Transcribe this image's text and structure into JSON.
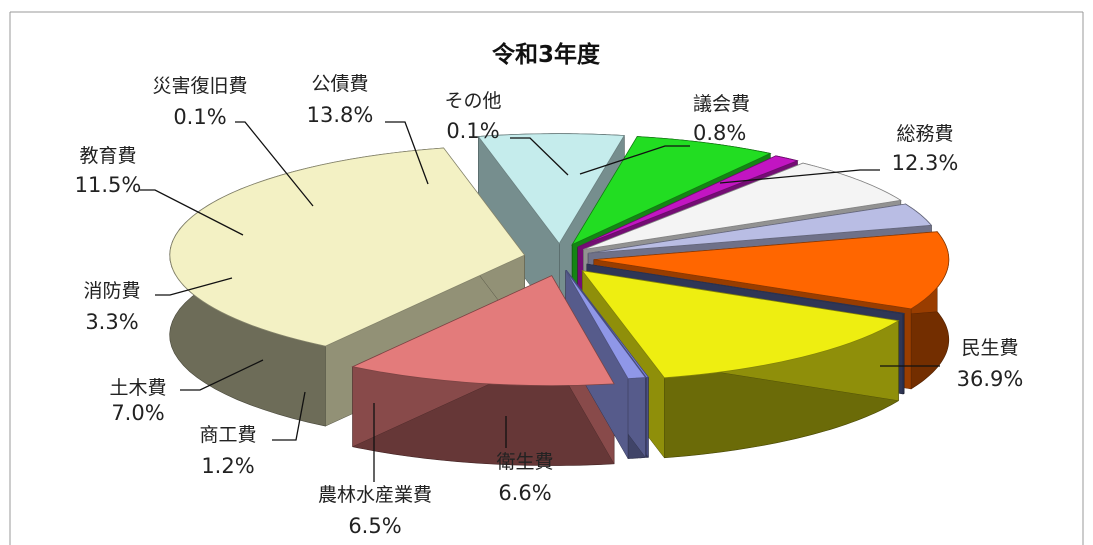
{
  "chart_data": {
    "type": "pie",
    "title": "令和3年度",
    "unit": "%",
    "slices": [
      {
        "name": "議会費",
        "label": "0.8%",
        "value": 0.8,
        "color": "#8f97e8"
      },
      {
        "name": "総務費",
        "label": "12.3%",
        "value": 12.3,
        "color": "#e37b7b"
      },
      {
        "name": "民生費",
        "label": "36.9%",
        "value": 36.9,
        "color": "#f3f1c4"
      },
      {
        "name": "衛生費",
        "label": "6.6%",
        "value": 6.6,
        "color": "#c5ecec"
      },
      {
        "name": "農林水産業費",
        "label": "6.5%",
        "value": 6.5,
        "color": "#22dd22"
      },
      {
        "name": "商工費",
        "label": "1.2%",
        "value": 1.2,
        "color": "#c215c2"
      },
      {
        "name": "土木費",
        "label": "7.0%",
        "value": 7.0,
        "color": "#f4f4f4"
      },
      {
        "name": "消防費",
        "label": "3.3%",
        "value": 3.3,
        "color": "#b9bde4"
      },
      {
        "name": "教育費",
        "label": "11.5%",
        "value": 11.5,
        "color": "#ff6600"
      },
      {
        "name": "災害復旧費",
        "label": "0.1%",
        "value": 0.1,
        "color": "#4e5a8f"
      },
      {
        "name": "公債費",
        "label": "13.8%",
        "value": 13.8,
        "color": "#eeee11"
      },
      {
        "name": "その他",
        "label": "0.1%",
        "value": 0.1,
        "color": "#7d86e0"
      }
    ]
  }
}
